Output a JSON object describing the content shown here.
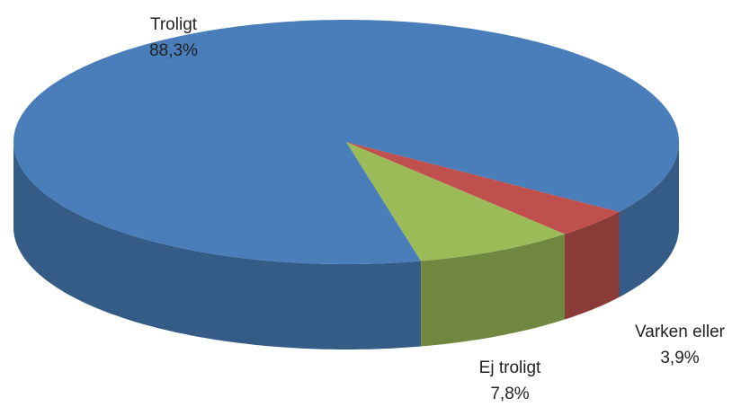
{
  "chart_data": {
    "type": "pie3d",
    "categories": [
      "Troligt",
      "Ej troligt",
      "Varken eller"
    ],
    "values": [
      88.3,
      7.8,
      3.9
    ],
    "value_labels": [
      "88,3%",
      "7,8%",
      "3,9%"
    ],
    "colors": [
      "#4a7ebb",
      "#9bbb59",
      "#c0504d"
    ]
  }
}
